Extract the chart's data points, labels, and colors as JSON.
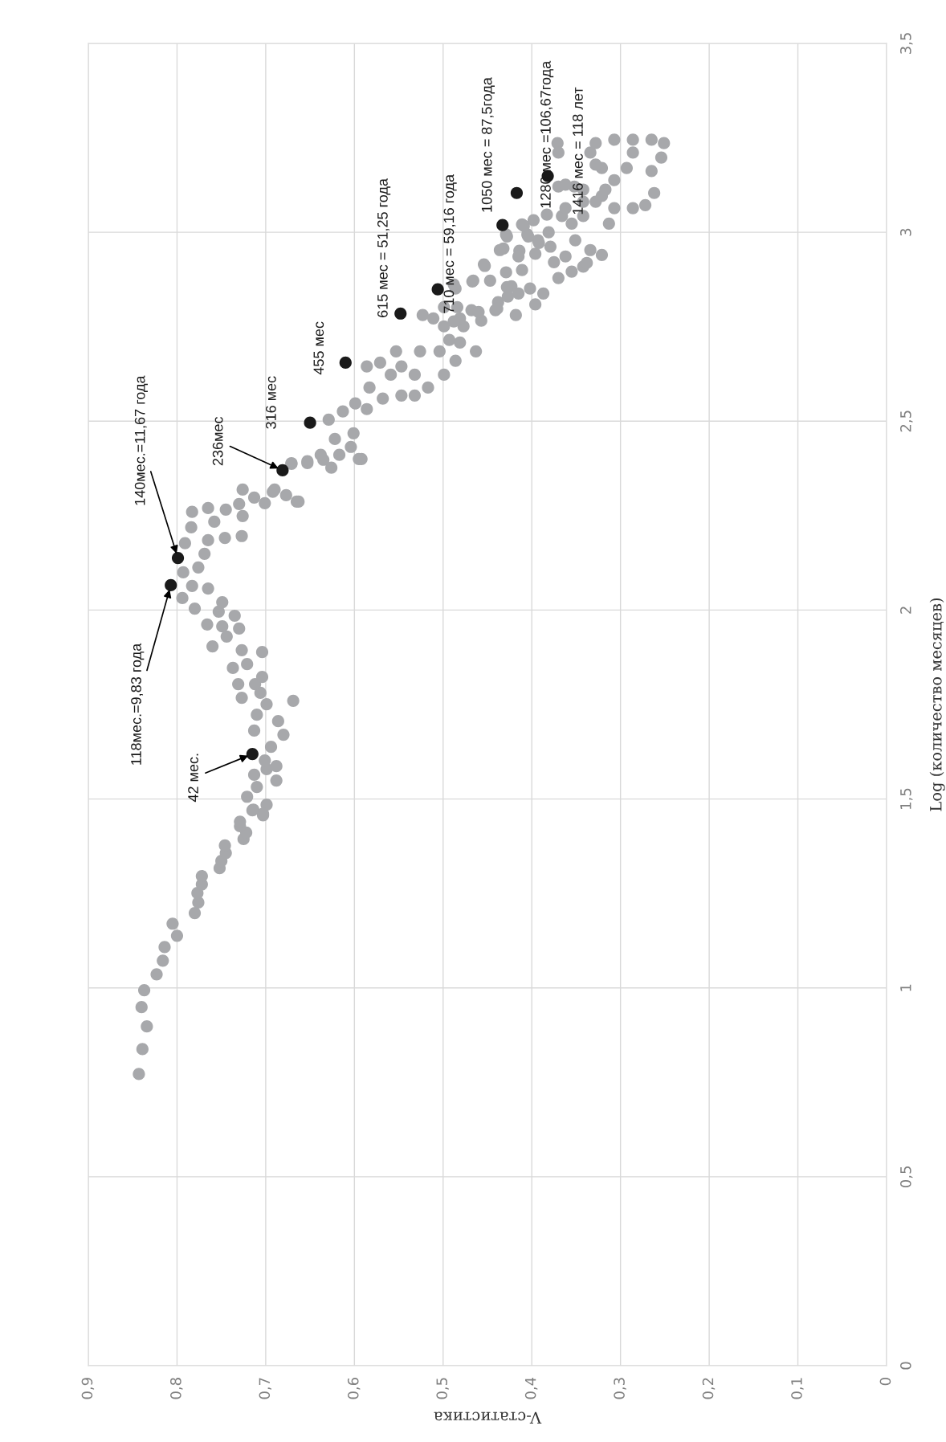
{
  "chart_data": {
    "type": "scatter",
    "ylabel": "Log (количество месяцев)",
    "xlabel": "V-статистика",
    "ylim": [
      0,
      3.5
    ],
    "xlim": [
      0.9,
      0
    ],
    "yticks": [
      0,
      {
        "value": 0.5,
        "label": "0,5"
      },
      1,
      {
        "value": 1.5,
        "label": "1,5"
      },
      2,
      {
        "value": 2.5,
        "label": "2,5"
      },
      3,
      {
        "value": 3.5,
        "label": "3,5"
      }
    ],
    "xticks": [
      0,
      {
        "value": 0.1,
        "label": "0,1"
      },
      {
        "value": 0.2,
        "label": "0,2"
      },
      {
        "value": 0.3,
        "label": "0,3"
      },
      {
        "value": 0.4,
        "label": "0,4"
      },
      {
        "value": 0.5,
        "label": "0,5"
      },
      {
        "value": 0.6,
        "label": "0,6"
      },
      {
        "value": 0.7,
        "label": "0,7"
      },
      {
        "value": 0.8,
        "label": "0,8"
      },
      {
        "value": 0.9,
        "label": "0,9"
      }
    ],
    "grid": true,
    "marker": "circle",
    "series": [
      {
        "color": "#a7a8ab",
        "values": [
          0.772,
          0.838,
          0.898,
          0.949,
          0.994,
          1.036,
          1.072,
          1.108,
          1.138,
          1.17,
          1.198,
          1.226,
          1.251,
          1.274,
          1.296,
          1.317,
          1.336,
          1.357,
          1.377,
          1.394,
          1.411,
          1.428,
          1.44,
          1.457,
          1.472,
          1.485,
          1.461,
          1.47,
          1.506,
          1.532,
          1.564,
          1.549,
          1.587,
          1.579,
          1.602,
          1.638,
          1.67,
          1.706,
          1.681,
          1.723,
          1.751,
          1.76,
          1.768,
          1.781,
          1.804,
          1.823,
          1.804,
          1.847,
          1.857,
          1.889,
          1.894,
          1.904,
          1.93,
          1.951,
          1.957,
          1.962,
          1.985,
          2.004,
          1.996,
          2.021,
          2.057,
          2.032,
          2.064,
          2.1,
          2.113,
          2.149,
          2.177,
          2.185,
          2.191,
          2.196,
          2.219,
          2.234,
          2.26,
          2.27,
          2.266,
          2.249,
          2.281,
          2.319,
          2.298,
          2.283,
          2.319,
          2.287,
          2.304,
          2.389,
          2.389,
          2.398,
          2.411,
          2.377,
          2.4,
          2.432,
          2.387,
          2.394,
          2.411,
          2.4,
          2.287,
          2.313,
          2.453,
          2.504,
          2.526,
          2.547,
          2.468,
          2.532,
          2.56,
          2.568,
          2.589,
          2.623,
          2.568,
          2.589,
          2.645,
          2.655,
          2.685,
          2.645,
          2.685,
          2.623,
          2.623,
          2.66,
          2.685,
          2.715,
          2.708,
          2.685,
          2.751,
          2.766,
          2.751,
          2.781,
          2.772,
          2.802,
          2.802,
          2.794,
          2.794,
          2.815,
          2.83,
          2.851,
          2.872,
          2.872,
          2.894,
          2.915,
          2.9,
          2.857,
          2.851,
          2.809,
          2.781,
          2.943,
          2.957,
          2.951,
          2.921,
          3.021,
          2.994,
          2.994,
          2.979,
          3.0,
          3.043,
          3.043,
          2.979,
          2.909,
          3.017,
          2.989,
          2.989,
          2.972,
          2.953,
          2.936,
          2.911,
          3.032,
          3.047,
          3.064,
          3.081,
          3.096,
          3.023,
          2.94,
          2.953,
          2.936,
          2.879,
          2.838,
          2.838,
          2.855,
          2.798,
          2.789,
          2.772,
          2.862,
          2.87,
          3.023,
          3.113,
          3.121,
          3.121,
          3.126,
          3.236,
          3.211,
          3.211,
          3.236,
          3.245,
          3.245,
          3.245,
          3.236,
          3.198,
          3.162,
          3.104,
          3.072,
          3.064,
          3.064,
          3.138,
          3.17,
          3.17,
          3.211,
          3.113,
          3.179,
          3.081,
          2.962,
          2.896,
          2.919,
          2.764
        ],
        "x": [
          0.843,
          0.839,
          0.834,
          0.84,
          0.837,
          0.823,
          0.816,
          0.814,
          0.8,
          0.805,
          0.78,
          0.776,
          0.777,
          0.772,
          0.772,
          0.752,
          0.75,
          0.745,
          0.746,
          0.725,
          0.722,
          0.729,
          0.729,
          0.703,
          0.714,
          0.699,
          0.703,
          0.715,
          0.721,
          0.71,
          0.713,
          0.688,
          0.688,
          0.699,
          0.701,
          0.694,
          0.68,
          0.686,
          0.713,
          0.71,
          0.699,
          0.669,
          0.727,
          0.706,
          0.712,
          0.704,
          0.731,
          0.737,
          0.721,
          0.704,
          0.727,
          0.76,
          0.744,
          0.73,
          0.749,
          0.766,
          0.735,
          0.78,
          0.753,
          0.749,
          0.765,
          0.794,
          0.783,
          0.793,
          0.776,
          0.769,
          0.791,
          0.765,
          0.746,
          0.727,
          0.784,
          0.758,
          0.783,
          0.765,
          0.745,
          0.726,
          0.73,
          0.726,
          0.713,
          0.701,
          0.69,
          0.663,
          0.677,
          0.671,
          0.653,
          0.635,
          0.617,
          0.626,
          0.592,
          0.604,
          0.671,
          0.653,
          0.638,
          0.595,
          0.665,
          0.692,
          0.622,
          0.629,
          0.613,
          0.599,
          0.601,
          0.586,
          0.568,
          0.547,
          0.583,
          0.559,
          0.532,
          0.517,
          0.586,
          0.571,
          0.553,
          0.547,
          0.526,
          0.532,
          0.499,
          0.486,
          0.504,
          0.493,
          0.481,
          0.463,
          0.477,
          0.457,
          0.499,
          0.523,
          0.511,
          0.499,
          0.484,
          0.468,
          0.441,
          0.438,
          0.427,
          0.486,
          0.466,
          0.447,
          0.429,
          0.454,
          0.411,
          0.423,
          0.402,
          0.396,
          0.418,
          0.396,
          0.432,
          0.414,
          0.375,
          0.411,
          0.429,
          0.405,
          0.393,
          0.381,
          0.366,
          0.342,
          0.351,
          0.342,
          0.409,
          0.428,
          0.404,
          0.392,
          0.436,
          0.415,
          0.453,
          0.398,
          0.383,
          0.362,
          0.342,
          0.321,
          0.313,
          0.321,
          0.334,
          0.362,
          0.37,
          0.387,
          0.415,
          0.428,
          0.439,
          0.46,
          0.481,
          0.488,
          0.467,
          0.355,
          0.342,
          0.352,
          0.37,
          0.362,
          0.371,
          0.37,
          0.334,
          0.328,
          0.307,
          0.286,
          0.265,
          0.251,
          0.254,
          0.265,
          0.262,
          0.272,
          0.286,
          0.307,
          0.307,
          0.321,
          0.293,
          0.286,
          0.317,
          0.328,
          0.328,
          0.379,
          0.355,
          0.338,
          0.488
        ]
      },
      {
        "color": "#1a1a1a",
        "values": [
          1.619,
          2.066,
          2.138,
          2.37,
          2.496,
          2.655,
          2.785,
          2.849,
          3.019,
          3.104,
          3.149
        ],
        "x": [
          0.715,
          0.807,
          0.799,
          0.681,
          0.65,
          0.61,
          0.548,
          0.506,
          0.433,
          0.417,
          0.382
        ]
      }
    ],
    "annotations": [
      {
        "text": "42 мес.",
        "x": 0.715,
        "y": 1.619
      },
      {
        "text": "118мес.=9,83 года",
        "x": 0.807,
        "y": 2.066
      },
      {
        "text": "140мес.=11,67 года",
        "x": 0.799,
        "y": 2.138
      },
      {
        "text": "236мес",
        "x": 0.681,
        "y": 2.37
      },
      {
        "text": "316 мес",
        "x": 0.65,
        "y": 2.496
      },
      {
        "text": "455 мес",
        "x": 0.61,
        "y": 2.655
      },
      {
        "text": "615 мес = 51,25 года",
        "x": 0.548,
        "y": 2.785
      },
      {
        "text": "710 мес = 59,16 года",
        "x": 0.506,
        "y": 2.849
      },
      {
        "text": "1050 мес = 87,5года",
        "x": 0.433,
        "y": 3.019
      },
      {
        "text": "1280 мес =106,67года",
        "x": 0.417,
        "y": 3.104
      },
      {
        "text": "1416 мес = 118 лет",
        "x": 0.382,
        "y": 3.149
      }
    ]
  }
}
